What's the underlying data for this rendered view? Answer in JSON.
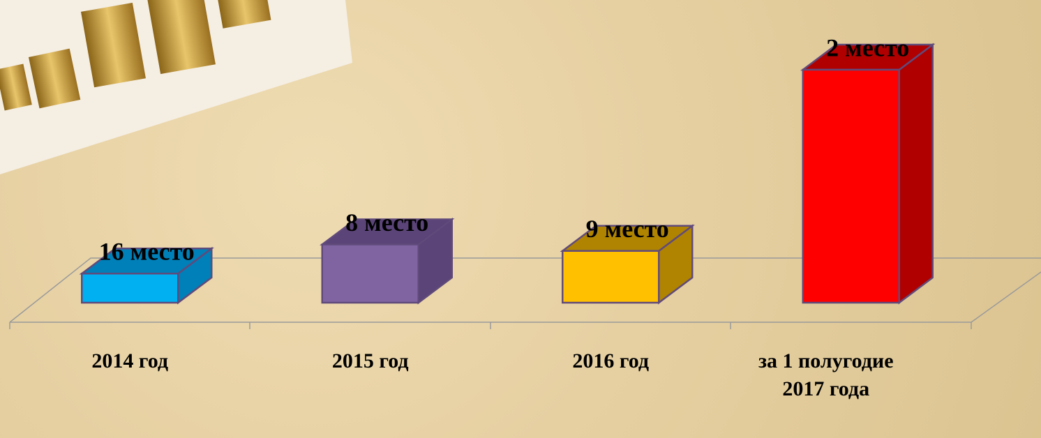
{
  "chart_data": {
    "type": "bar3d",
    "categories": [
      "2014 год",
      "2015 год",
      "2016 год",
      "за 1 полугодие 2017 года"
    ],
    "values": [
      16,
      8,
      9,
      2
    ],
    "value_labels": [
      "16 место",
      "8 место",
      "9 место",
      "2 место"
    ],
    "colors": [
      "#00b0f0",
      "#8064a2",
      "#ffc000",
      "#ff0000"
    ],
    "side_colors": [
      "#0080b8",
      "#5a4478",
      "#b08400",
      "#b00000"
    ]
  }
}
